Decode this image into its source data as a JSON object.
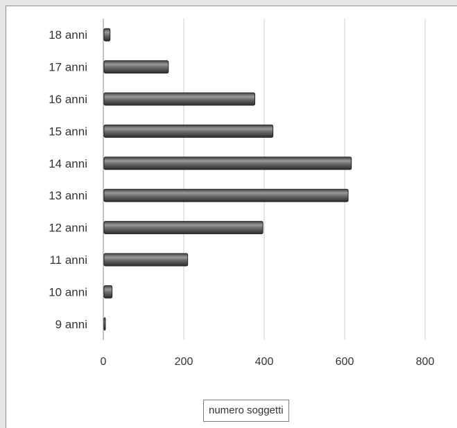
{
  "chart_data": {
    "type": "bar",
    "orientation": "horizontal",
    "categories": [
      "18 anni",
      "17 anni",
      "16 anni",
      "15 anni",
      "14 anni",
      "13 anni",
      "12 anni",
      "11 anni",
      "10 anni",
      "9 anni"
    ],
    "values": [
      15,
      160,
      375,
      420,
      615,
      607,
      395,
      208,
      20,
      3
    ],
    "series": [
      {
        "name": "numero soggetti",
        "values": [
          15,
          160,
          375,
          420,
          615,
          607,
          395,
          208,
          20,
          3
        ]
      }
    ],
    "xlim": [
      0,
      800
    ],
    "xticks": [
      0,
      200,
      400,
      600,
      800
    ],
    "grid": true,
    "legend": "bottom",
    "colors": {
      "bar": "#555555",
      "bar_highlight": "#9a9a9a",
      "grid": "#d9d9d9",
      "axis": "#8a8a8a",
      "text": "#333333"
    }
  }
}
